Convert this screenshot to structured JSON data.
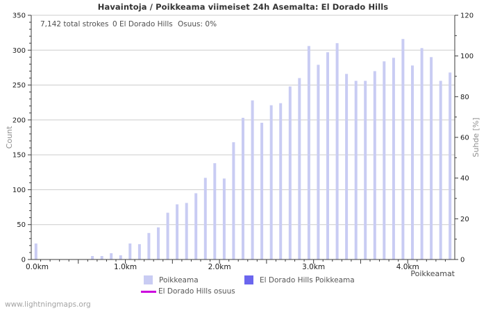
{
  "page": {
    "title": "Havaintoja / Poikkeama viimeiset 24h Asemalta: El Dorado Hills",
    "watermark": "www.lightningmaps.org"
  },
  "annotations": {
    "total_strokes": "7,142 total strokes",
    "station_strokes": "0 El Dorado Hills",
    "share": "Osuus: 0%"
  },
  "chart_data": {
    "type": "bar",
    "title": "Havaintoja / Poikkeama viimeiset 24h Asemalta: El Dorado Hills",
    "xlabel": "Poikkeamat",
    "ylabel_left": "Count",
    "ylabel_right": "Suhde [%]",
    "xlim_km": [
      0,
      4.5
    ],
    "ylim_left": [
      0,
      350
    ],
    "ylim_right": [
      0,
      120
    ],
    "grid": true,
    "legend_position": "bottom",
    "bin_width_km": 0.1,
    "bins_km": [
      0.0,
      0.1,
      0.2,
      0.3,
      0.4,
      0.5,
      0.6,
      0.7,
      0.8,
      0.9,
      1.0,
      1.1,
      1.2,
      1.3,
      1.4,
      1.5,
      1.6,
      1.7,
      1.8,
      1.9,
      2.0,
      2.1,
      2.2,
      2.3,
      2.4,
      2.5,
      2.6,
      2.7,
      2.8,
      2.9,
      3.0,
      3.1,
      3.2,
      3.3,
      3.4,
      3.5,
      3.6,
      3.7,
      3.8,
      3.9,
      4.0,
      4.1,
      4.2,
      4.3,
      4.4
    ],
    "values": [
      23,
      0,
      0,
      0,
      0,
      0,
      5,
      5,
      9,
      6,
      23,
      22,
      38,
      46,
      67,
      79,
      81,
      95,
      117,
      138,
      116,
      168,
      203,
      228,
      196,
      221,
      224,
      248,
      260,
      306,
      279,
      297,
      310,
      266,
      256,
      256,
      270,
      284,
      289,
      316,
      278,
      303,
      290,
      256,
      268
    ],
    "station_values_total": 0,
    "share_percent": 0,
    "total_strokes": 7142,
    "y_left_ticks": [
      0,
      50,
      100,
      150,
      200,
      250,
      300,
      350
    ],
    "y_right_ticks": [
      0,
      20,
      40,
      60,
      80,
      100,
      120
    ],
    "x_major_ticks": [
      {
        "km": 0,
        "label": "0.0km"
      },
      {
        "km": 1,
        "label": "1.0km"
      },
      {
        "km": 2,
        "label": "2.0km"
      },
      {
        "km": 3,
        "label": "3.0km"
      },
      {
        "km": 4,
        "label": "4.0km"
      }
    ],
    "legend": [
      {
        "label": "Poikkeama",
        "swatch": "square",
        "color": "#c9ccf3"
      },
      {
        "label": "El Dorado Hills Poikkeama",
        "swatch": "square",
        "color": "#6b66ee"
      },
      {
        "label": "El Dorado Hills osuus",
        "swatch": "line",
        "color": "#cc00dd"
      }
    ],
    "colors": {
      "bar": "#c9ccf3",
      "station_bar": "#6b66ee",
      "share_line": "#cc00dd",
      "grid": "#cccccc",
      "axis": "#3a3a3a",
      "tick_label": "#1a1a1a"
    }
  }
}
